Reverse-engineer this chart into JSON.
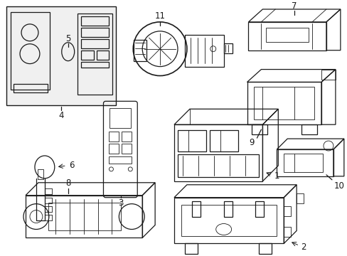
{
  "bg_color": "#ffffff",
  "line_color": "#1a1a1a",
  "lw": 0.9,
  "lw2": 0.6,
  "figsize": [
    4.89,
    3.6
  ],
  "dpi": 100
}
